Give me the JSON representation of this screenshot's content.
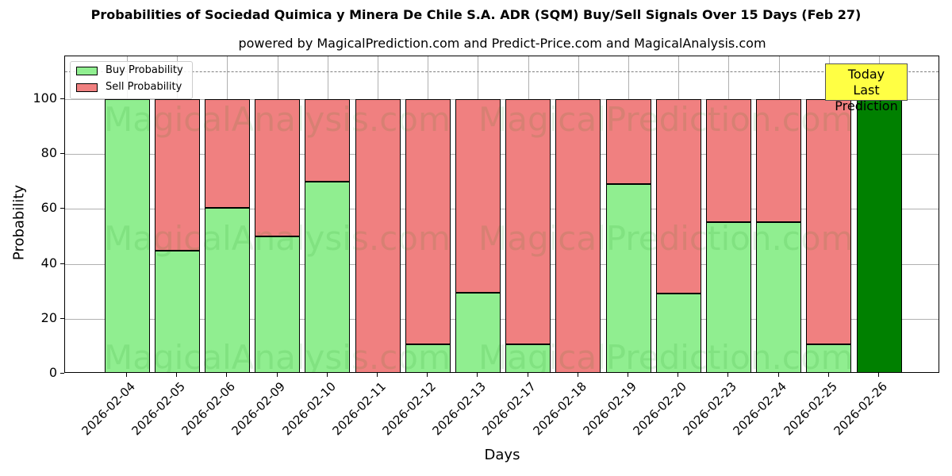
{
  "chart_data": {
    "type": "bar",
    "stacked": true,
    "title": "Probabilities of Sociedad Quimica y Minera De Chile S.A. ADR (SQM) Buy/Sell Signals Over 15 Days (Feb 27)",
    "subtitle": "powered by MagicalPrediction.com and Predict-Price.com and MagicalAnalysis.com",
    "xlabel": "Days",
    "ylabel": "Probability",
    "ylim": [
      0,
      115
    ],
    "yticks": [
      0,
      20,
      40,
      60,
      80,
      100
    ],
    "grid": true,
    "legend_position": "upper left",
    "categories": [
      "2026-02-04",
      "2026-02-05",
      "2026-02-06",
      "2026-02-09",
      "2026-02-10",
      "2026-02-11",
      "2026-02-12",
      "2026-02-13",
      "2026-02-17",
      "2026-02-18",
      "2026-02-19",
      "2026-02-20",
      "2026-02-23",
      "2026-02-24",
      "2026-02-25",
      "2026-02-26"
    ],
    "series": [
      {
        "name": "Buy Probability",
        "color": "#90ee90",
        "values": [
          100,
          44.8,
          60.4,
          50.0,
          70.0,
          0,
          10.7,
          29.5,
          10.7,
          0,
          69.2,
          29.3,
          55.3,
          55.2,
          10.7,
          100
        ]
      },
      {
        "name": "Sell Probability",
        "color": "#f08080",
        "values": [
          0,
          55.2,
          39.6,
          50.0,
          30.0,
          100,
          89.3,
          70.5,
          89.3,
          100,
          30.8,
          70.7,
          44.7,
          44.8,
          89.3,
          0
        ]
      }
    ],
    "today_bar": {
      "category": "2026-02-26",
      "color": "#008000"
    },
    "reference_line": {
      "y": 110,
      "style": "dashed",
      "color": "#808080"
    },
    "annotations": [
      {
        "text": "Today\nLast Prediction",
        "line1": "Today",
        "line2": "Last Prediction",
        "background": "#ffff44"
      }
    ],
    "watermarks": [
      "MagicalAnalysis.com",
      "MagicalPrediction.com"
    ]
  }
}
